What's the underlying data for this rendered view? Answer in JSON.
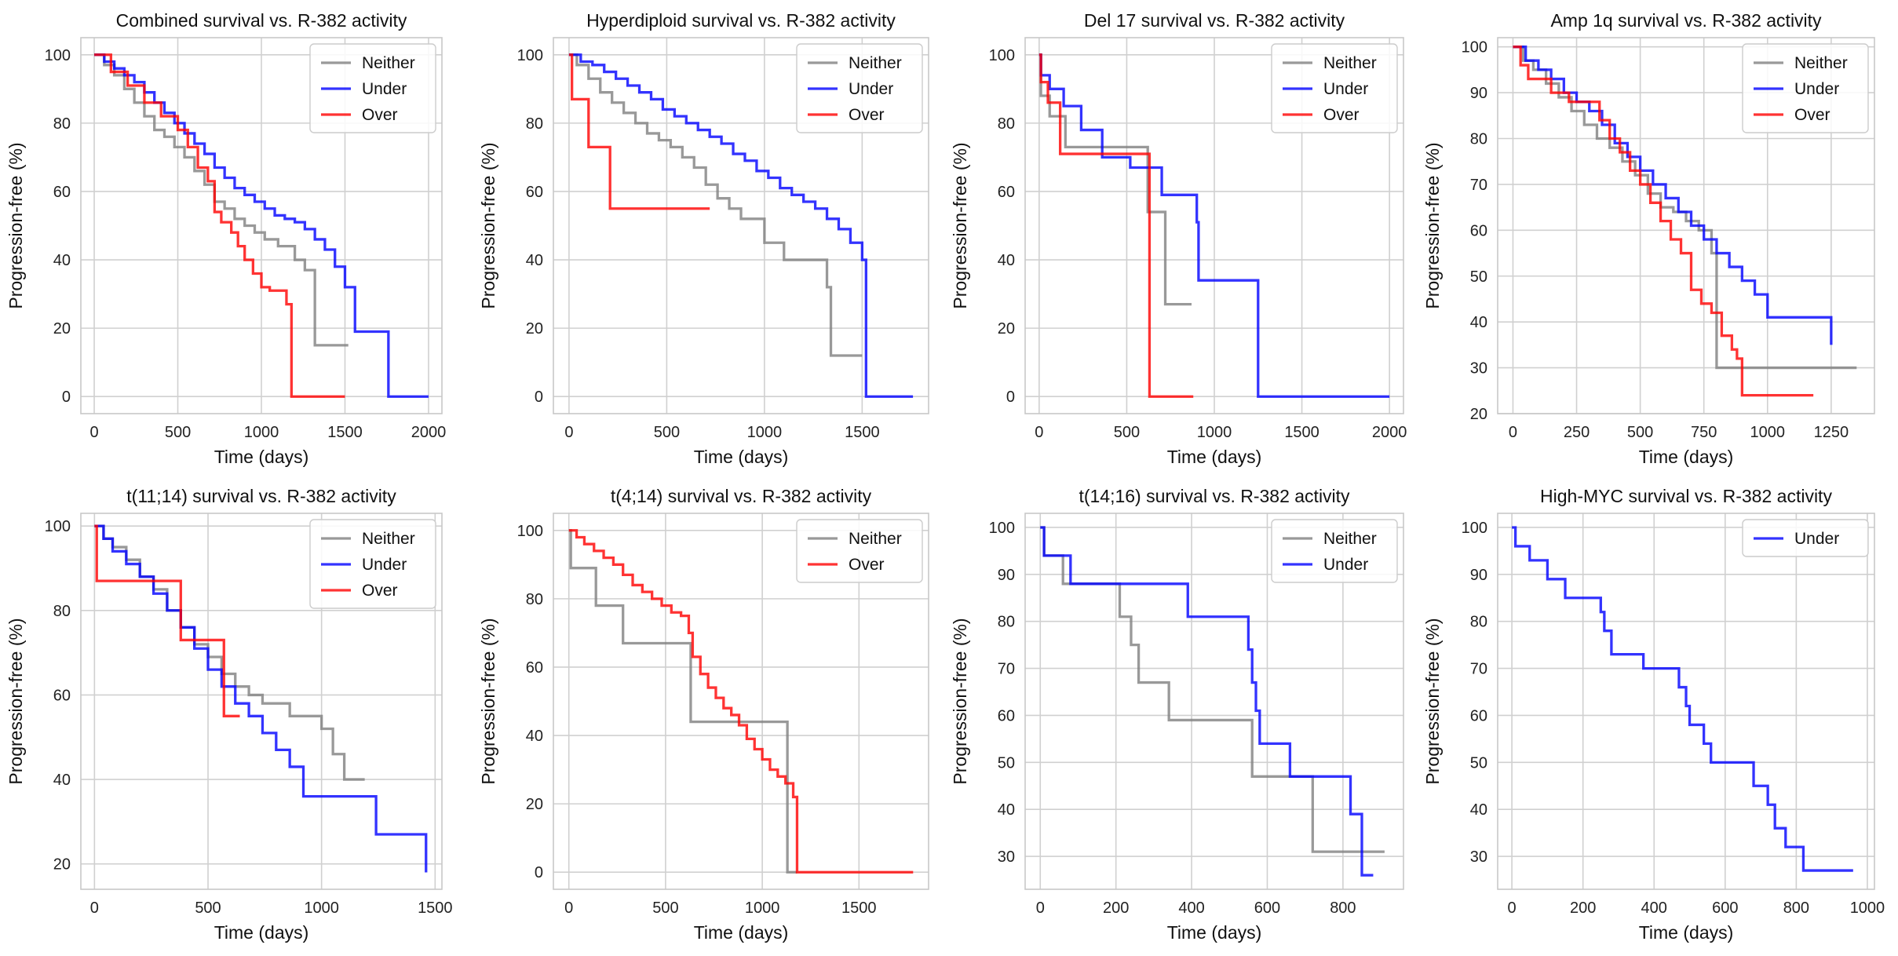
{
  "colors": {
    "Neither": "#808080",
    "Under": "#0000ff",
    "Over": "#ff0000"
  },
  "chart_data": [
    {
      "type": "line",
      "title": "Combined survival vs. R-382 activity",
      "xlabel": "Time (days)",
      "ylabel": "Progression-free (%)",
      "xlim": [
        -80,
        2080
      ],
      "ylim": [
        -5,
        105
      ],
      "xticks": [
        0,
        500,
        1000,
        1500,
        2000
      ],
      "yticks": [
        0,
        20,
        40,
        60,
        80,
        100
      ],
      "legend": [
        "Neither",
        "Under",
        "Over"
      ],
      "series": [
        {
          "name": "Neither",
          "x": [
            0,
            60,
            120,
            180,
            240,
            300,
            360,
            420,
            480,
            540,
            600,
            660,
            720,
            780,
            840,
            900,
            960,
            1020,
            1100,
            1200,
            1260,
            1320,
            1520
          ],
          "y": [
            100,
            97,
            94,
            90,
            86,
            82,
            78,
            76,
            73,
            70,
            66,
            62,
            57,
            55,
            52,
            50,
            48,
            46,
            44,
            40,
            37,
            15,
            15
          ]
        },
        {
          "name": "Under",
          "x": [
            0,
            60,
            120,
            180,
            240,
            300,
            360,
            420,
            480,
            540,
            600,
            660,
            720,
            780,
            840,
            900,
            960,
            1020,
            1080,
            1140,
            1200,
            1260,
            1320,
            1380,
            1440,
            1500,
            1560,
            1760,
            2000
          ],
          "y": [
            100,
            98,
            96,
            94,
            92,
            89,
            86,
            83,
            80,
            77,
            74,
            71,
            67,
            64,
            61,
            59,
            57,
            55,
            53,
            52,
            51,
            49,
            46,
            43,
            38,
            32,
            19,
            0,
            0
          ]
        },
        {
          "name": "Over",
          "x": [
            0,
            100,
            200,
            300,
            400,
            500,
            560,
            620,
            680,
            720,
            760,
            820,
            860,
            900,
            950,
            1000,
            1050,
            1100,
            1150,
            1180,
            1500
          ],
          "y": [
            100,
            95,
            91,
            86,
            82,
            78,
            73,
            67,
            63,
            54,
            51,
            48,
            44,
            40,
            36,
            32,
            31,
            31,
            27,
            0,
            0
          ]
        }
      ]
    },
    {
      "type": "line",
      "title": "Hyperdiploid survival vs. R-382 activity",
      "xlabel": "Time (days)",
      "ylabel": "Progression-free (%)",
      "xlim": [
        -80,
        1840
      ],
      "ylim": [
        -5,
        105
      ],
      "xticks": [
        0,
        500,
        1000,
        1500
      ],
      "yticks": [
        0,
        20,
        40,
        60,
        80,
        100
      ],
      "legend": [
        "Neither",
        "Under",
        "Over"
      ],
      "series": [
        {
          "name": "Neither",
          "x": [
            0,
            40,
            100,
            160,
            220,
            280,
            340,
            400,
            460,
            520,
            580,
            640,
            700,
            760,
            820,
            880,
            1000,
            1100,
            1180,
            1240,
            1320,
            1340,
            1500
          ],
          "y": [
            100,
            97,
            93,
            89,
            86,
            83,
            80,
            77,
            75,
            73,
            70,
            67,
            62,
            58,
            55,
            52,
            45,
            40,
            40,
            40,
            32,
            12,
            12
          ]
        },
        {
          "name": "Under",
          "x": [
            0,
            60,
            120,
            180,
            240,
            300,
            360,
            420,
            480,
            540,
            600,
            660,
            720,
            780,
            840,
            900,
            960,
            1020,
            1080,
            1140,
            1200,
            1260,
            1320,
            1380,
            1440,
            1500,
            1520,
            1760
          ],
          "y": [
            100,
            98,
            97,
            95,
            93,
            91,
            89,
            87,
            84,
            82,
            80,
            78,
            76,
            74,
            71,
            69,
            66,
            64,
            61,
            59,
            57,
            55,
            52,
            49,
            45,
            40,
            0,
            0
          ]
        },
        {
          "name": "Over",
          "x": [
            0,
            15,
            100,
            210,
            320,
            430,
            720
          ],
          "y": [
            100,
            87,
            73,
            55,
            55,
            55,
            55
          ]
        }
      ]
    },
    {
      "type": "line",
      "title": "Del 17 survival vs. R-382 activity",
      "xlabel": "Time (days)",
      "ylabel": "Progression-free (%)",
      "xlim": [
        -80,
        2080
      ],
      "ylim": [
        -5,
        105
      ],
      "xticks": [
        0,
        500,
        1000,
        1500,
        2000
      ],
      "yticks": [
        0,
        20,
        40,
        60,
        80,
        100
      ],
      "legend": [
        "Neither",
        "Under",
        "Over"
      ],
      "series": [
        {
          "name": "Neither",
          "x": [
            0,
            10,
            60,
            150,
            580,
            620,
            720,
            870
          ],
          "y": [
            100,
            88,
            82,
            73,
            73,
            54,
            27,
            27
          ]
        },
        {
          "name": "Under",
          "x": [
            0,
            10,
            60,
            140,
            240,
            360,
            520,
            700,
            900,
            910,
            1250,
            2000
          ],
          "y": [
            100,
            94,
            90,
            85,
            78,
            70,
            67,
            59,
            51,
            34,
            0,
            0
          ]
        },
        {
          "name": "Over",
          "x": [
            0,
            10,
            50,
            120,
            600,
            630,
            880
          ],
          "y": [
            100,
            92,
            86,
            71,
            71,
            0,
            0
          ]
        }
      ]
    },
    {
      "type": "line",
      "title": "Amp 1q survival vs. R-382 activity",
      "xlabel": "Time (days)",
      "ylabel": "Progression-free (%)",
      "xlim": [
        -60,
        1420
      ],
      "ylim": [
        20,
        102
      ],
      "xticks": [
        0,
        250,
        500,
        750,
        1000,
        1250
      ],
      "yticks": [
        20,
        30,
        40,
        50,
        60,
        70,
        80,
        90,
        100
      ],
      "legend": [
        "Neither",
        "Under",
        "Over"
      ],
      "series": [
        {
          "name": "Neither",
          "x": [
            0,
            40,
            80,
            130,
            180,
            230,
            280,
            330,
            380,
            430,
            480,
            530,
            580,
            630,
            680,
            730,
            780,
            800,
            1350
          ],
          "y": [
            100,
            97,
            95,
            92,
            89,
            86,
            83,
            80,
            78,
            75,
            72,
            68,
            65,
            64,
            62,
            60,
            55,
            30,
            30
          ]
        },
        {
          "name": "Under",
          "x": [
            0,
            50,
            100,
            150,
            200,
            250,
            300,
            350,
            400,
            450,
            500,
            550,
            600,
            650,
            700,
            750,
            800,
            850,
            900,
            950,
            1000,
            1100,
            1200,
            1250
          ],
          "y": [
            100,
            97,
            95,
            93,
            90,
            88,
            86,
            83,
            79,
            76,
            73,
            70,
            67,
            64,
            61,
            58,
            55,
            52,
            49,
            46,
            41,
            41,
            41,
            35
          ]
        },
        {
          "name": "Over",
          "x": [
            0,
            30,
            60,
            150,
            220,
            260,
            300,
            340,
            380,
            420,
            460,
            500,
            540,
            580,
            620,
            660,
            700,
            740,
            780,
            820,
            860,
            880,
            900,
            1180
          ],
          "y": [
            100,
            96,
            93,
            90,
            88,
            88,
            88,
            84,
            80,
            77,
            73,
            70,
            66,
            62,
            58,
            55,
            47,
            44,
            42,
            37,
            34,
            32,
            24,
            24
          ]
        }
      ]
    },
    {
      "type": "line",
      "title": "t(11;14) survival vs. R-382 activity",
      "xlabel": "Time (days)",
      "ylabel": "Progression-free (%)",
      "xlim": [
        -60,
        1530
      ],
      "ylim": [
        14,
        103
      ],
      "xticks": [
        0,
        500,
        1000,
        1500
      ],
      "yticks": [
        20,
        40,
        60,
        80,
        100
      ],
      "legend": [
        "Neither",
        "Under",
        "Over"
      ],
      "series": [
        {
          "name": "Neither",
          "x": [
            0,
            40,
            80,
            140,
            200,
            260,
            320,
            380,
            440,
            500,
            560,
            620,
            680,
            740,
            860,
            1000,
            1050,
            1100,
            1160,
            1190
          ],
          "y": [
            100,
            97,
            95,
            92,
            88,
            85,
            80,
            76,
            72,
            69,
            65,
            62,
            60,
            58,
            55,
            52,
            46,
            40,
            40,
            40
          ]
        },
        {
          "name": "Under",
          "x": [
            0,
            40,
            80,
            140,
            200,
            260,
            320,
            380,
            440,
            500,
            560,
            620,
            680,
            740,
            800,
            860,
            920,
            1050,
            1200,
            1240,
            1460
          ],
          "y": [
            100,
            97,
            94,
            91,
            88,
            84,
            80,
            76,
            71,
            66,
            62,
            58,
            55,
            51,
            47,
            43,
            36,
            36,
            36,
            27,
            18
          ]
        },
        {
          "name": "Over",
          "x": [
            0,
            10,
            200,
            350,
            380,
            550,
            570,
            640
          ],
          "y": [
            100,
            87,
            87,
            87,
            73,
            73,
            55,
            55
          ]
        }
      ]
    },
    {
      "type": "line",
      "title": "t(4;14) survival vs. R-382 activity",
      "xlabel": "Time (days)",
      "ylabel": "Progression-free (%)",
      "xlim": [
        -80,
        1860
      ],
      "ylim": [
        -5,
        105
      ],
      "xticks": [
        0,
        500,
        1000,
        1500
      ],
      "yticks": [
        0,
        20,
        40,
        60,
        80,
        100
      ],
      "legend": [
        "Neither",
        "Over"
      ],
      "series": [
        {
          "name": "Neither",
          "x": [
            0,
            10,
            140,
            280,
            490,
            630,
            1000,
            1100,
            1130,
            1180
          ],
          "y": [
            100,
            89,
            78,
            67,
            67,
            44,
            44,
            44,
            0,
            0
          ]
        },
        {
          "name": "Over",
          "x": [
            0,
            40,
            80,
            130,
            180,
            230,
            280,
            330,
            380,
            430,
            480,
            530,
            580,
            620,
            640,
            680,
            720,
            760,
            800,
            840,
            880,
            920,
            960,
            1000,
            1040,
            1080,
            1120,
            1160,
            1180,
            1780
          ],
          "y": [
            100,
            98,
            96,
            94,
            92,
            90,
            87,
            84,
            82,
            80,
            78,
            76,
            75,
            70,
            63,
            58,
            54,
            51,
            48,
            46,
            43,
            39,
            36,
            33,
            30,
            28,
            26,
            22,
            0,
            0
          ]
        }
      ]
    },
    {
      "type": "line",
      "title": "t(14;16) survival vs. R-382 activity",
      "xlabel": "Time (days)",
      "ylabel": "Progression-free (%)",
      "xlim": [
        -40,
        960
      ],
      "ylim": [
        23,
        103
      ],
      "xticks": [
        0,
        200,
        400,
        600,
        800
      ],
      "yticks": [
        30,
        40,
        50,
        60,
        70,
        80,
        90,
        100
      ],
      "legend": [
        "Neither",
        "Under"
      ],
      "series": [
        {
          "name": "Neither",
          "x": [
            0,
            10,
            60,
            210,
            240,
            260,
            340,
            550,
            560,
            720,
            820,
            910
          ],
          "y": [
            100,
            94,
            88,
            81,
            75,
            67,
            59,
            59,
            47,
            31,
            31,
            31
          ]
        },
        {
          "name": "Under",
          "x": [
            0,
            10,
            80,
            350,
            390,
            550,
            560,
            570,
            580,
            660,
            820,
            850,
            880
          ],
          "y": [
            100,
            94,
            88,
            88,
            81,
            74,
            67,
            61,
            54,
            47,
            39,
            26,
            26
          ]
        }
      ]
    },
    {
      "type": "line",
      "title": "High-MYC survival vs. R-382 activity",
      "xlabel": "Time (days)",
      "ylabel": "Progression-free (%)",
      "xlim": [
        -40,
        1020
      ],
      "ylim": [
        23,
        103
      ],
      "xticks": [
        0,
        200,
        400,
        600,
        800,
        1000
      ],
      "yticks": [
        30,
        40,
        50,
        60,
        70,
        80,
        90,
        100
      ],
      "legend": [
        "Under"
      ],
      "series": [
        {
          "name": "Under",
          "x": [
            0,
            10,
            50,
            100,
            150,
            200,
            230,
            250,
            260,
            280,
            370,
            470,
            490,
            500,
            540,
            560,
            620,
            680,
            720,
            740,
            770,
            820,
            960
          ],
          "y": [
            100,
            96,
            93,
            89,
            85,
            85,
            85,
            82,
            78,
            73,
            70,
            66,
            62,
            58,
            54,
            50,
            50,
            45,
            41,
            36,
            32,
            27,
            27
          ]
        }
      ]
    }
  ]
}
